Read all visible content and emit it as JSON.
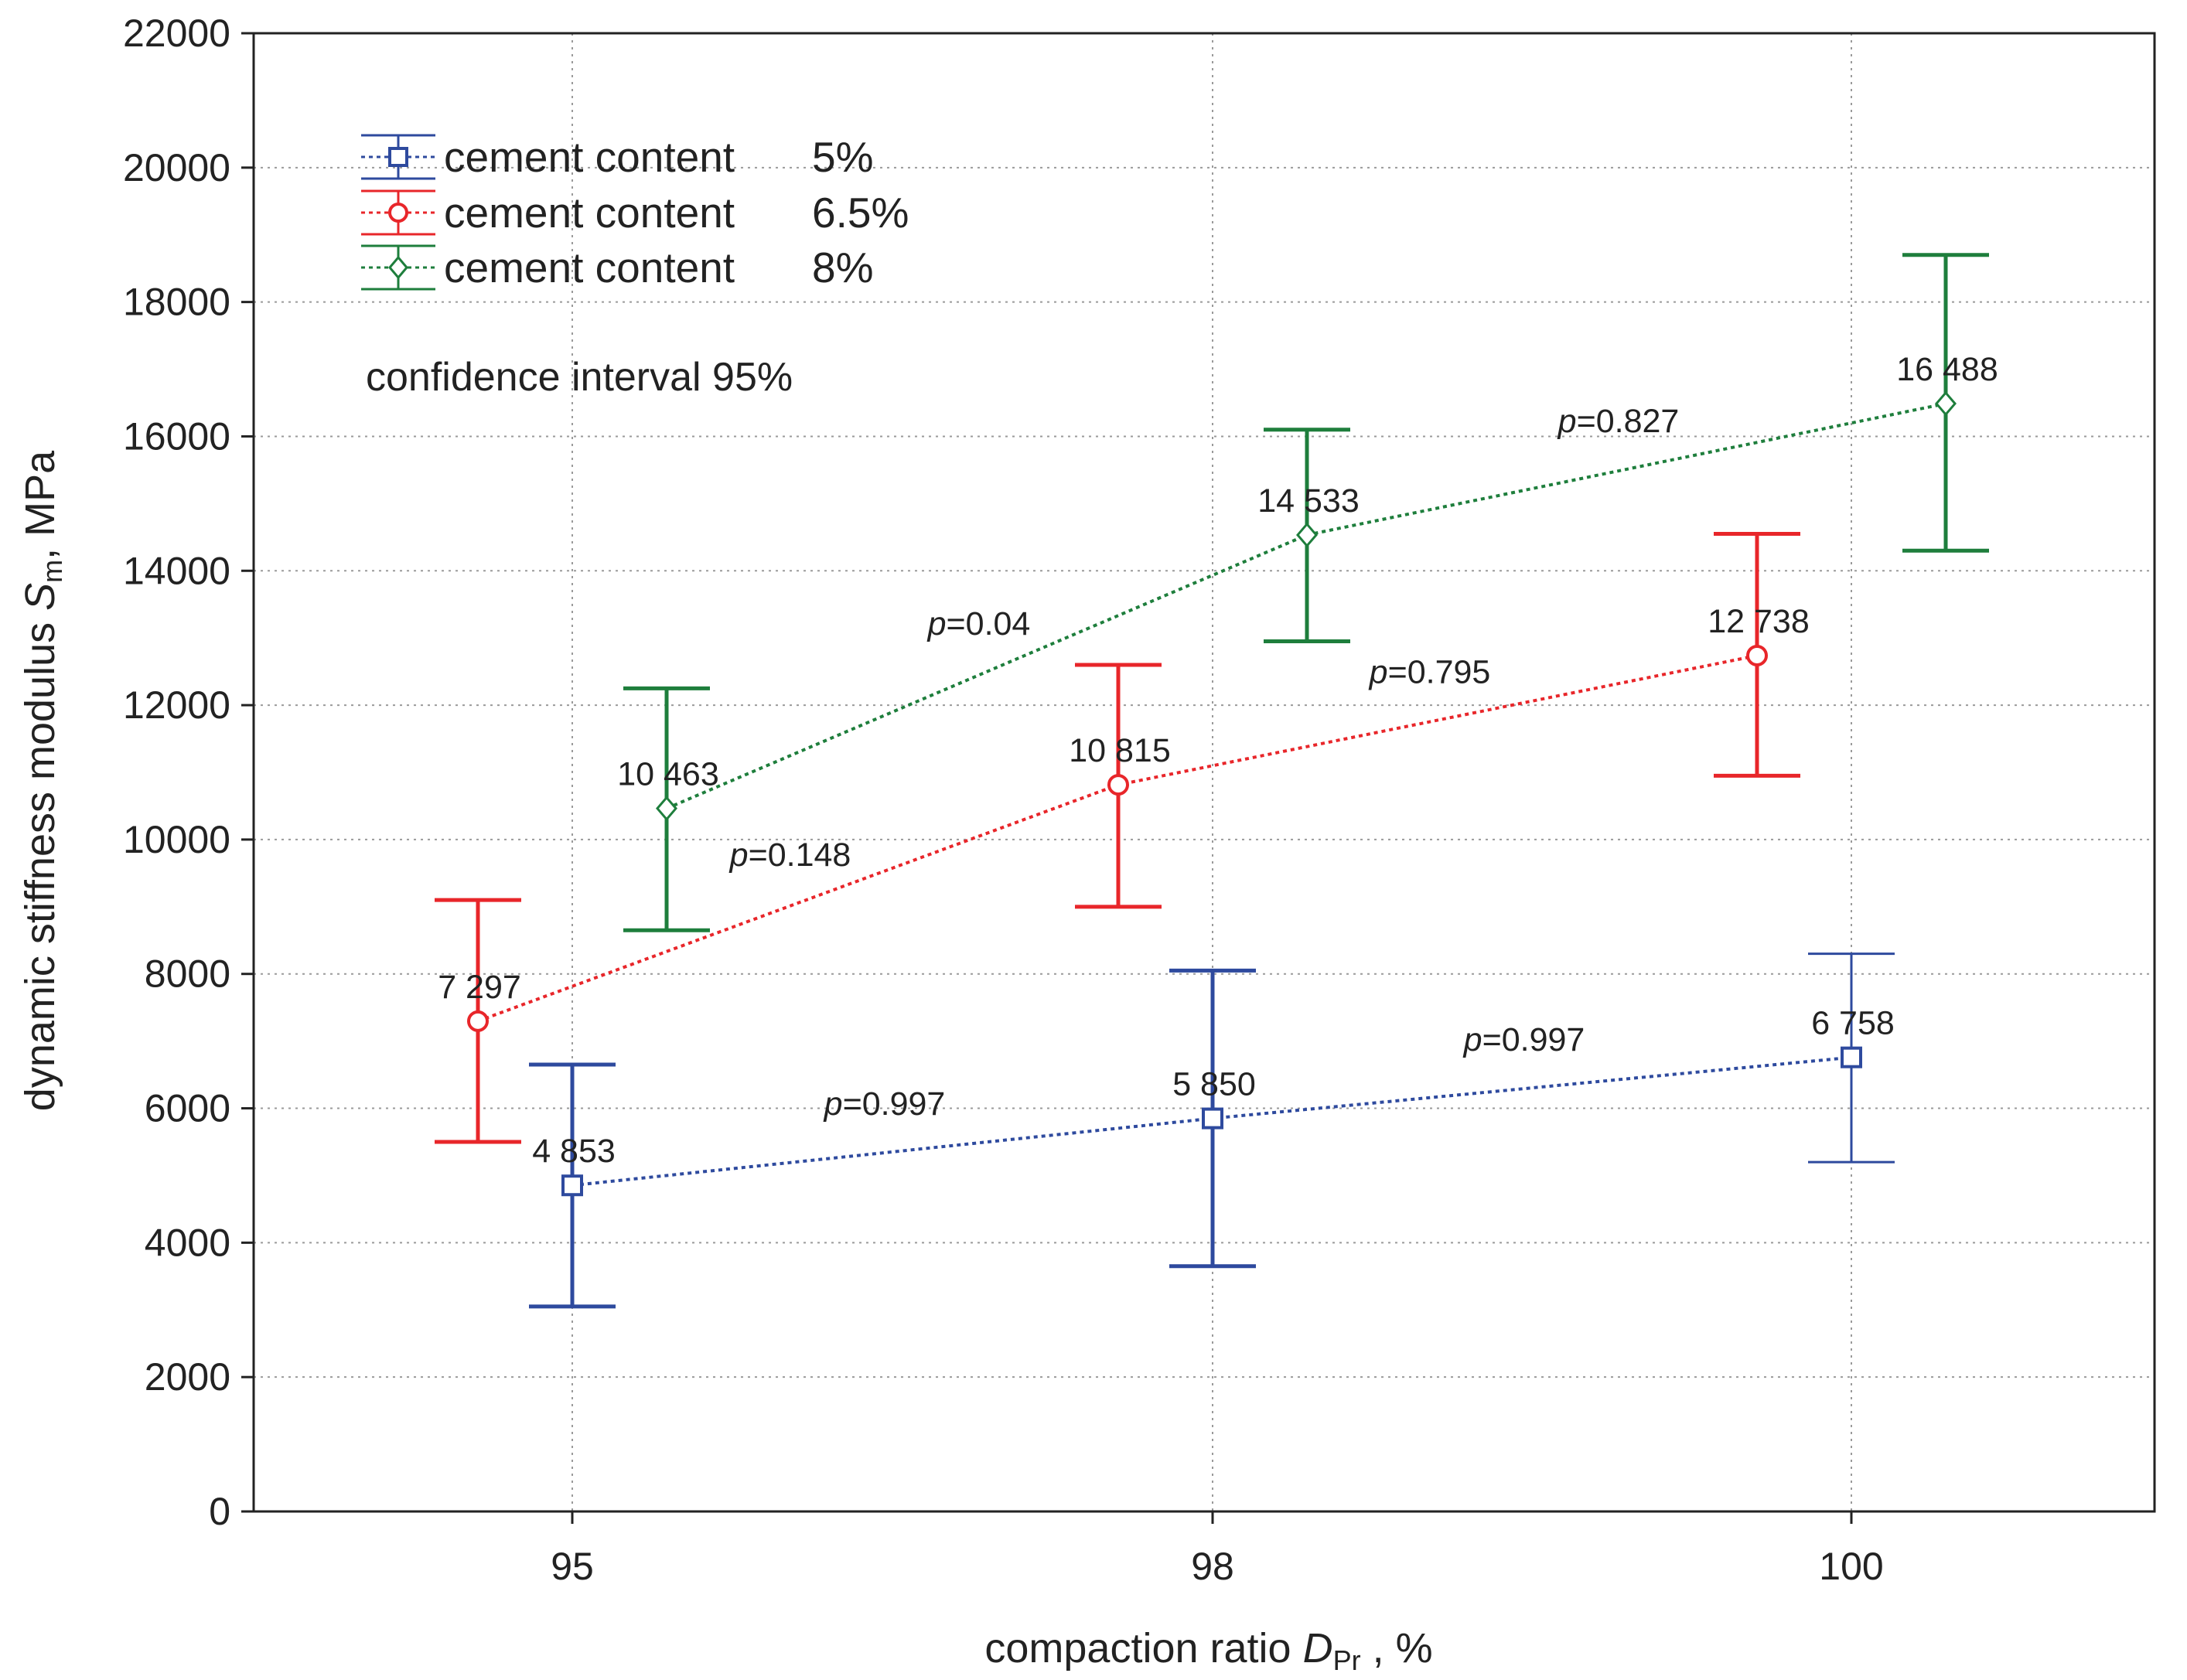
{
  "chart_data": {
    "type": "line",
    "xlabel": {
      "prefix": "compaction ratio ",
      "var": "D",
      "sub": "Pr",
      "suffix": " , %"
    },
    "ylabel": {
      "prefix": "dynamic stiffness modulus ",
      "var": "S",
      "sub": "m",
      "suffix": ", MPa"
    },
    "categories": [
      "95",
      "98",
      "100"
    ],
    "ylim": [
      0,
      22000
    ],
    "yticks": [
      "0",
      "2000",
      "4000",
      "6000",
      "8000",
      "10000",
      "12000",
      "14000",
      "16000",
      "18000",
      "20000",
      "22000"
    ],
    "grid": true,
    "legend_position": "top-left",
    "note": "confidence interval 95%",
    "series": [
      {
        "name": "cement content",
        "pct": "5%",
        "color": "#2e4a9e",
        "marker": "square",
        "values": [
          4853,
          5850,
          6758
        ],
        "labels": [
          "4 853",
          "5 850",
          "6 758"
        ],
        "ci_low": [
          3050,
          3650,
          5200
        ],
        "ci_high": [
          6650,
          8050,
          8300
        ]
      },
      {
        "name": "cement content",
        "pct": "6.5%",
        "color": "#e8262a",
        "marker": "circle",
        "values": [
          7297,
          10815,
          12738
        ],
        "labels": [
          "7 297",
          "10 815",
          "12 738"
        ],
        "ci_low": [
          5500,
          9000,
          10950
        ],
        "ci_high": [
          9100,
          12600,
          14550
        ]
      },
      {
        "name": "cement content",
        "pct": "8%",
        "color": "#1e7e3c",
        "marker": "diamond",
        "values": [
          10463,
          14533,
          16488
        ],
        "labels": [
          "10 463",
          "14 533",
          "16 488"
        ],
        "ci_low": [
          8650,
          12950,
          14300
        ],
        "ci_high": [
          12250,
          16100,
          18700
        ]
      }
    ],
    "p_values": [
      {
        "series": 0,
        "segment": 0,
        "letter": "p",
        "text": "=0.997"
      },
      {
        "series": 0,
        "segment": 1,
        "letter": "p",
        "text": "=0.997"
      },
      {
        "series": 1,
        "segment": 0,
        "letter": "p",
        "text": "=0.148"
      },
      {
        "series": 1,
        "segment": 1,
        "letter": "p",
        "text": "=0.795"
      },
      {
        "series": 2,
        "segment": 0,
        "letter": "p",
        "text": "=0.04"
      },
      {
        "series": 2,
        "segment": 1,
        "letter": "p",
        "text": "=0.827"
      }
    ]
  }
}
